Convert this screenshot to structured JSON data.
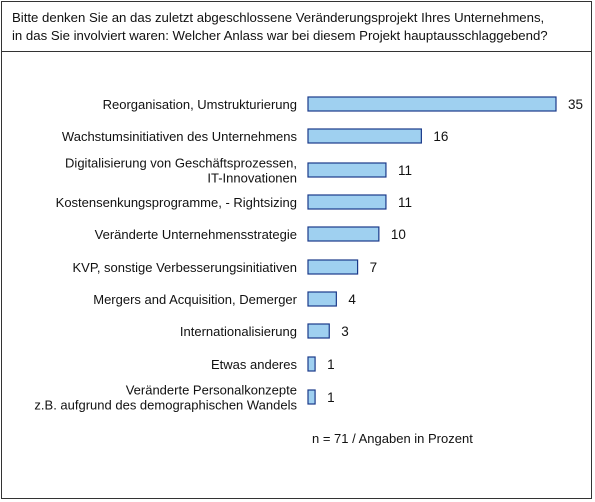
{
  "question": {
    "line1": "Bitte denken Sie an das zuletzt abgeschlossene Veränderungsprojekt Ihres Unternehmens,",
    "line2": "in  das Sie involviert waren: Welcher Anlass war bei diesem Projekt hauptausschlaggebend?"
  },
  "note": "n = 71 / Angaben in Prozent",
  "colors": {
    "bar_fill": "#9fd0f0",
    "bar_stroke": "#1a3a8a"
  },
  "chart_data": {
    "type": "bar",
    "orientation": "horizontal",
    "categories": [
      [
        "Reorganisation, Umstrukturierung"
      ],
      [
        "Wachstumsinitiativen des Unternehmens"
      ],
      [
        "Digitalisierung von Geschäftsprozessen,",
        "IT-Innovationen"
      ],
      [
        "Kostensenkungsprogramme, - Rightsizing"
      ],
      [
        "Veränderte Unternehmensstrategie"
      ],
      [
        "KVP, sonstige Verbesserungsinitiativen"
      ],
      [
        "Mergers and Acquisition, Demerger"
      ],
      [
        "Internationalisierung"
      ],
      [
        "Etwas anderes"
      ],
      [
        "Veränderte Personalkonzepte",
        "z.B. aufgrund des demographischen Wandels"
      ]
    ],
    "values": [
      35,
      16,
      11,
      11,
      10,
      7,
      4,
      3,
      1,
      1
    ],
    "xlim": [
      0,
      35
    ],
    "grid": false,
    "axis_labels_shown": false
  }
}
